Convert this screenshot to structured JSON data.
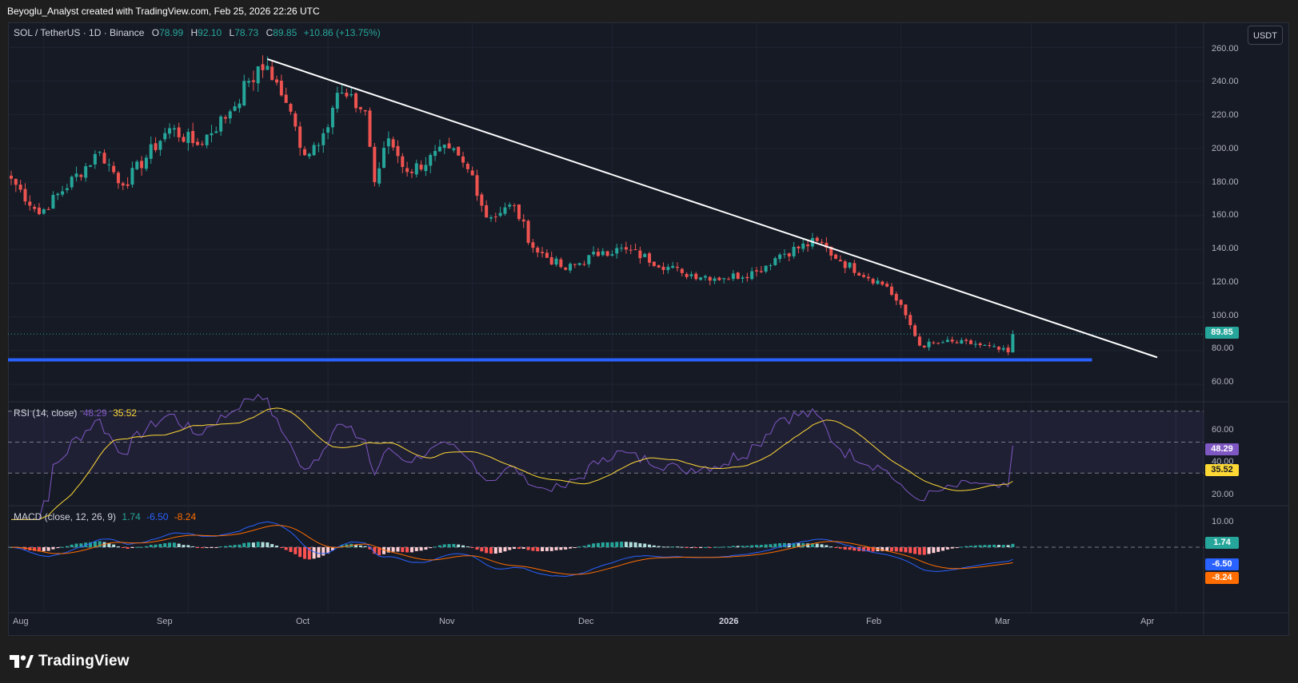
{
  "header": {
    "credit": "Beyoglu_Analyst created with TradingView.com, Feb 25, 2026 22:26 UTC"
  },
  "legend": {
    "symbol": "SOL / TetherUS · 1D · Binance",
    "open_label": "O",
    "open": "78.99",
    "high_label": "H",
    "high": "92.10",
    "low_label": "L",
    "low": "78.73",
    "close_label": "C",
    "close": "89.85",
    "change": "+10.86 (+13.75%)"
  },
  "currency_button": "USDT",
  "price_axis": {
    "ticks": [
      "260.00",
      "240.00",
      "220.00",
      "200.00",
      "180.00",
      "160.00",
      "140.00",
      "120.00",
      "100.00",
      "80.00",
      "60.00"
    ],
    "last_price": "89.85"
  },
  "rsi": {
    "label": "RSI (14, close)",
    "rsi_value": "48.29",
    "ma_value": "35.52",
    "axis_ticks": [
      "60.00",
      "40.00",
      "20.00"
    ]
  },
  "macd": {
    "label": "MACD (close, 12, 26, 9)",
    "hist_value": "1.74",
    "macd_value": "-6.50",
    "signal_value": "-8.24",
    "axis_ticks": [
      "10.00"
    ]
  },
  "time_axis": [
    "Aug",
    "Sep",
    "Oct",
    "Nov",
    "Dec",
    "2026",
    "Feb",
    "Mar",
    "Apr"
  ],
  "footer": {
    "brand": "TradingView"
  },
  "colors": {
    "up": "#26a69a",
    "down": "#ef5350",
    "rsi_line": "#7e57c2",
    "rsi_ma": "#fdd835",
    "macd": "#2962ff",
    "signal": "#ff6d00",
    "support": "#2962ff",
    "trendline": "#ffffff"
  },
  "chart_data": {
    "type": "candlestick",
    "title": "SOL / TetherUS · 1D · Binance",
    "x_range": [
      "2025-07-25",
      "2026-04-15"
    ],
    "y_range": [
      52,
      262
    ],
    "price_anchors": [
      {
        "date": "2025-07-25",
        "close": 182
      },
      {
        "date": "2025-07-31",
        "close": 161
      },
      {
        "date": "2025-08-13",
        "close": 198
      },
      {
        "date": "2025-08-18",
        "close": 178
      },
      {
        "date": "2025-08-28",
        "close": 212
      },
      {
        "date": "2025-09-03",
        "close": 202
      },
      {
        "date": "2025-09-10",
        "close": 222
      },
      {
        "date": "2025-09-14",
        "close": 240
      },
      {
        "date": "2025-09-18",
        "close": 249
      },
      {
        "date": "2025-09-22",
        "close": 227
      },
      {
        "date": "2025-09-26",
        "close": 196
      },
      {
        "date": "2025-09-30",
        "close": 209
      },
      {
        "date": "2025-10-03",
        "close": 233
      },
      {
        "date": "2025-10-09",
        "close": 222
      },
      {
        "date": "2025-10-11",
        "close": 180
      },
      {
        "date": "2025-10-14",
        "close": 206
      },
      {
        "date": "2025-10-18",
        "close": 186
      },
      {
        "date": "2025-10-27",
        "close": 200
      },
      {
        "date": "2025-11-01",
        "close": 184
      },
      {
        "date": "2025-11-04",
        "close": 159
      },
      {
        "date": "2025-11-10",
        "close": 166
      },
      {
        "date": "2025-11-14",
        "close": 141
      },
      {
        "date": "2025-11-21",
        "close": 128
      },
      {
        "date": "2025-11-29",
        "close": 139
      },
      {
        "date": "2025-12-04",
        "close": 140
      },
      {
        "date": "2025-12-16",
        "close": 126
      },
      {
        "date": "2025-12-25",
        "close": 123
      },
      {
        "date": "2026-01-01",
        "close": 127
      },
      {
        "date": "2026-01-06",
        "close": 137
      },
      {
        "date": "2026-01-14",
        "close": 145
      },
      {
        "date": "2026-01-19",
        "close": 133
      },
      {
        "date": "2026-01-29",
        "close": 118
      },
      {
        "date": "2026-02-02",
        "close": 101
      },
      {
        "date": "2026-02-05",
        "close": 83
      },
      {
        "date": "2026-02-10",
        "close": 85
      },
      {
        "date": "2026-02-17",
        "close": 84
      },
      {
        "date": "2026-02-24",
        "close": 79
      },
      {
        "date": "2026-02-25",
        "close": 89.85
      }
    ],
    "trendline": [
      {
        "date": "2025-09-18",
        "price": 253
      },
      {
        "date": "2026-03-28",
        "price": 76
      }
    ],
    "support_line": {
      "price": 74.5,
      "from": "2025-07-25",
      "to": "2026-03-14"
    },
    "last_candle": {
      "date": "2026-02-25",
      "open": 78.99,
      "high": 92.1,
      "low": 78.73,
      "close": 89.85
    },
    "rsi": {
      "upper_band": 70,
      "middle": 50,
      "lower_band": 30,
      "last": 48.29,
      "ma_last": 35.52
    },
    "macd": {
      "macd_last": -6.5,
      "signal_last": -8.24,
      "hist_last": 1.74
    }
  }
}
